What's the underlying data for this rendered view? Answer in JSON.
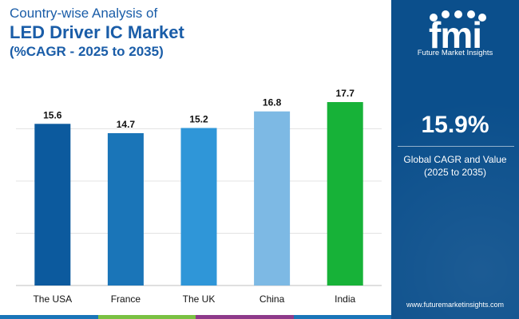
{
  "title": {
    "line1": "Country-wise Analysis of",
    "line2": "LED Driver IC Market",
    "line3": "(%CAGR - 2025 to 2035)"
  },
  "chart_data": {
    "type": "bar",
    "categories": [
      "The USA",
      "France",
      "The UK",
      "China",
      "India"
    ],
    "values": [
      15.6,
      14.7,
      15.2,
      16.8,
      17.7
    ],
    "bar_colors": [
      "#0c5a9e",
      "#1a75b8",
      "#2f96d8",
      "#7db9e4",
      "#17b238"
    ],
    "ylim": [
      0,
      17.7
    ],
    "grid": true,
    "xlabel": "",
    "ylabel": ""
  },
  "side_panel": {
    "brand": "Future Market Insights",
    "logo_icon": "fmi-logo-icon",
    "cagr_value": "15.9%",
    "cagr_label_line1": "Global CAGR and Value",
    "cagr_label_line2": "(2025 to 2035)",
    "website": "www.futuremarketinsights.com"
  },
  "colors": {
    "title": "#1a5da8",
    "panel_bg": "#0b4f8c",
    "strip": [
      "#1a75b8",
      "#7ac143",
      "#8e3a8a",
      "#1a75b8"
    ]
  }
}
